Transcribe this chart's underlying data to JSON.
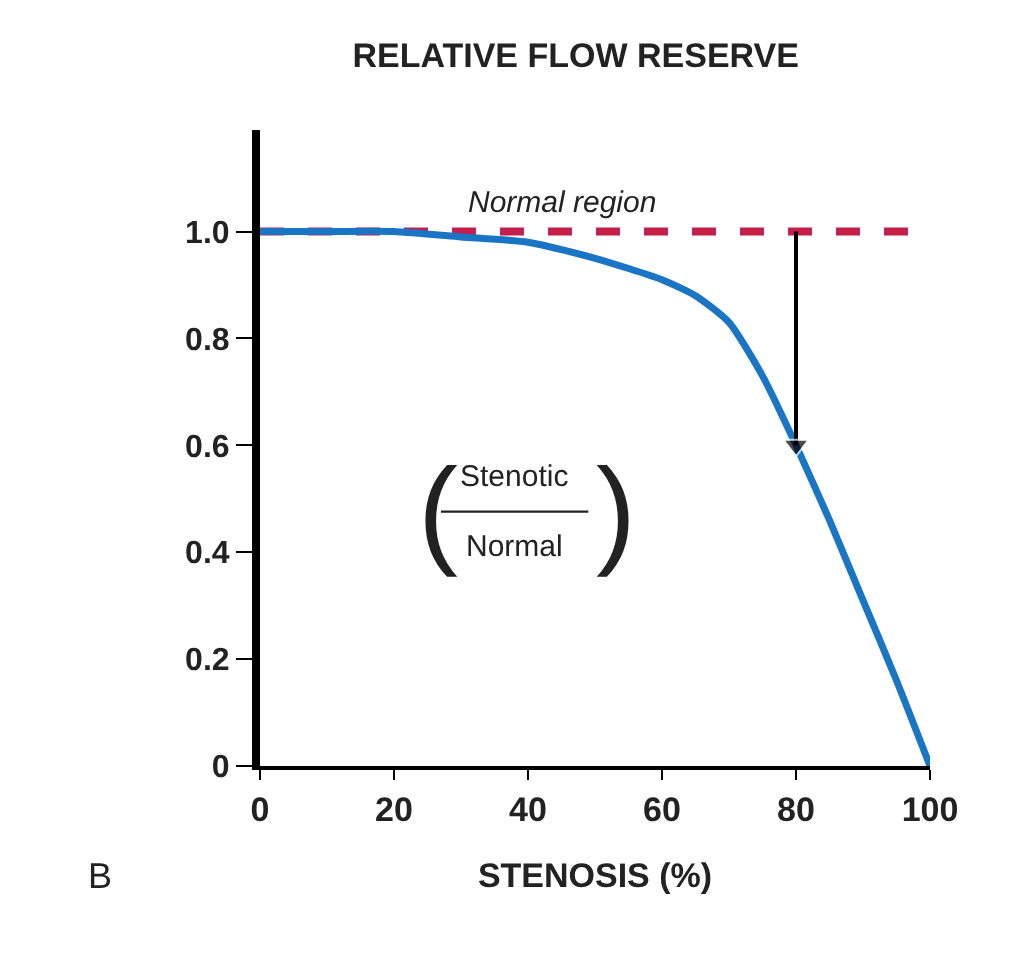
{
  "chart_data": {
    "type": "line",
    "title": "RELATIVE FLOW RESERVE",
    "xlabel": "STENOSIS (%)",
    "x": [
      0,
      10,
      20,
      30,
      40,
      50,
      60,
      65,
      70,
      75,
      80,
      85,
      90,
      95,
      100
    ],
    "series": [
      {
        "color": "#1a75c4",
        "values": [
          1.0,
          1.0,
          1.0,
          0.99,
          0.98,
          0.95,
          0.91,
          0.88,
          0.83,
          0.73,
          0.6,
          0.46,
          0.31,
          0.16,
          0.0
        ]
      },
      {
        "type": "line",
        "color": "#000000",
        "x": [
          80,
          80
        ],
        "values": [
          1.0,
          0.6
        ],
        "marker": "triangle"
      }
    ],
    "xlim": [
      0,
      100
    ],
    "ylim": [
      0,
      1.19
    ],
    "xticks": [
      0,
      20,
      40,
      60,
      80,
      100
    ],
    "yticks": [
      {
        "value": 0,
        "label": "0"
      },
      0.2,
      0.4,
      0.6,
      0.8,
      {
        "value": 1,
        "label": "1.0"
      }
    ],
    "ref_lines": [
      {
        "axis": "y",
        "value": 1.0,
        "label": "Normal region",
        "color": "#c41e4e",
        "line_style": "dashed"
      }
    ],
    "annotations": [
      "(",
      "Stenotic",
      "Normal",
      ")",
      "B"
    ],
    "marker": "none",
    "line_style": "solid"
  }
}
